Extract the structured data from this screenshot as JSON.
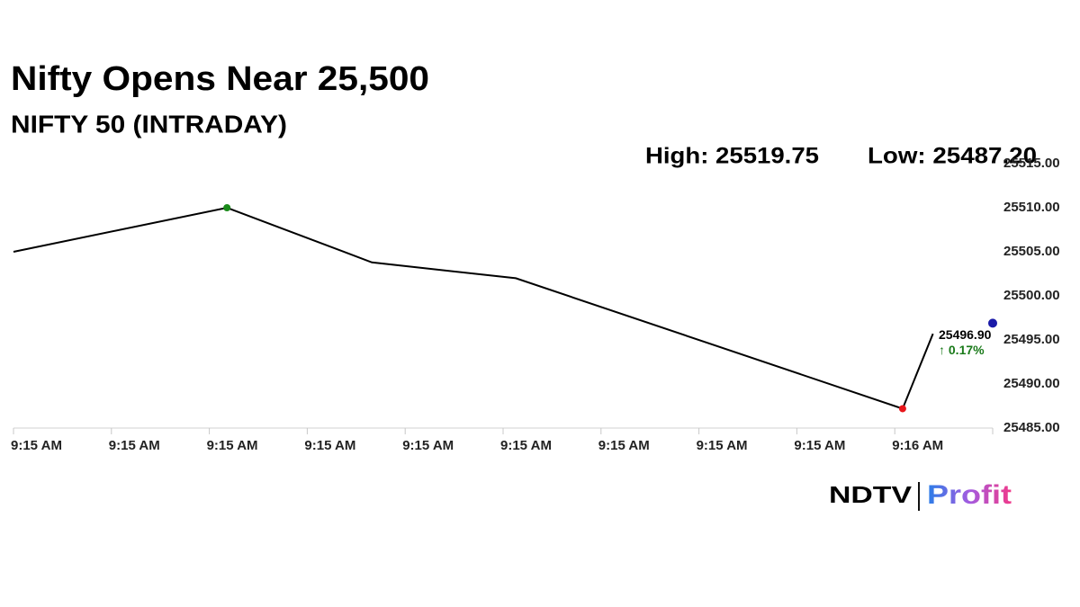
{
  "chart_data": {
    "type": "line",
    "title": "Nifty Opens Near 25,500",
    "subtitle": "NIFTY 50 (INTRADAY)",
    "high_label": "High: 25519.75",
    "low_label": "Low: 25487.20",
    "x": [
      0,
      2.18,
      3.66,
      5.13,
      9.08,
      9.39
    ],
    "series": [
      {
        "name": "NIFTY 50",
        "color": "#000000",
        "values": [
          25505,
          25510,
          25503.8,
          25502,
          25487.2,
          25495.7
        ]
      }
    ],
    "high_color": "#1a8a1a",
    "low_color": "#e8161b",
    "last_value": 25496.9,
    "last_value_label": "25496.90",
    "last_color": "#1a1aa8",
    "change_label": "↑ 0.17%",
    "change_color": "#1a7a1a",
    "xlim": [
      0,
      10
    ],
    "xticks": [
      {
        "value": 0,
        "label": "9:15 AM"
      },
      {
        "value": 1,
        "label": "9:15 AM"
      },
      {
        "value": 2,
        "label": "9:15 AM"
      },
      {
        "value": 3,
        "label": "9:15 AM"
      },
      {
        "value": 4,
        "label": "9:15 AM"
      },
      {
        "value": 5,
        "label": "9:15 AM"
      },
      {
        "value": 6,
        "label": "9:15 AM"
      },
      {
        "value": 7,
        "label": "9:15 AM"
      },
      {
        "value": 8,
        "label": "9:15 AM"
      },
      {
        "value": 9,
        "label": "9:16 AM"
      }
    ],
    "ylim": [
      25485,
      25515
    ],
    "yticks": [
      {
        "value": 25485,
        "label": "25485.00"
      },
      {
        "value": 25490,
        "label": "25490.00"
      },
      {
        "value": 25495,
        "label": "25495.00"
      },
      {
        "value": 25500,
        "label": "25500.00"
      },
      {
        "value": 25505,
        "label": "25505.00"
      },
      {
        "value": 25510,
        "label": "25510.00"
      },
      {
        "value": 25515,
        "label": "25515.00"
      }
    ],
    "logo": {
      "left": "NDTV",
      "right": "Profit"
    }
  }
}
